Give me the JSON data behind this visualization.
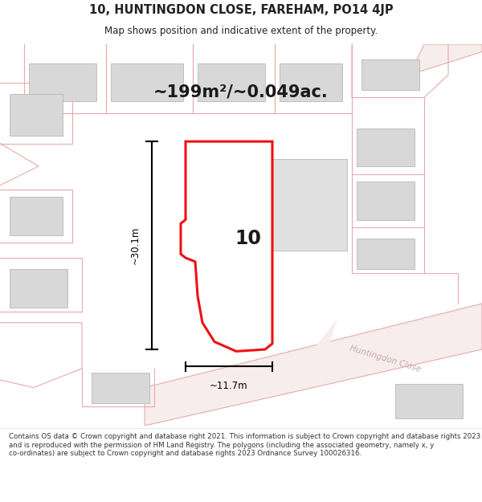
{
  "title_line1": "10, HUNTINGDON CLOSE, FAREHAM, PO14 4JP",
  "title_line2": "Map shows position and indicative extent of the property.",
  "area_text": "~199m²/~0.049ac.",
  "number_label": "10",
  "dim_vertical": "~30.1m",
  "dim_horizontal": "~11.7m",
  "road_label": "Huntingdon Close",
  "footer_text": "Contains OS data © Crown copyright and database right 2021. This information is subject to Crown copyright and database rights 2023 and is reproduced with the permission of HM Land Registry. The polygons (including the associated geometry, namely x, y co-ordinates) are subject to Crown copyright and database rights 2023 Ordnance Survey 100026316.",
  "bg_color": "#ffffff",
  "building_fill": "#d8d8d8",
  "building_stroke": "#b8b8b8",
  "road_fill": "#f7eded",
  "road_stroke": "#e8aaaa",
  "property_fill": "#ffffff",
  "property_stroke": "#ee1111",
  "dim_color": "#000000",
  "title_color": "#222222",
  "road_text_color": "#c8a8a8",
  "footer_color": "#333333",
  "plot_border_color": "#e8aaaa"
}
